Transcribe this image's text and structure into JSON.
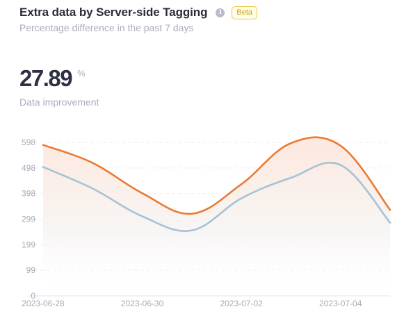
{
  "header": {
    "title": "Extra data by Server-side Tagging",
    "info_icon": "info-icon",
    "badge": "Beta",
    "subtitle": "Percentage difference in the past 7 days"
  },
  "metric": {
    "value": "27.89",
    "unit": "%",
    "label": "Data improvement"
  },
  "chart_data": {
    "type": "area",
    "x_ticks": [
      "2023-06-28",
      "2023-06-30",
      "2023-07-02",
      "2023-07-04"
    ],
    "y_ticks": [
      "0",
      "99",
      "199",
      "299",
      "398",
      "498",
      "598"
    ],
    "ylim": [
      0,
      598
    ],
    "grid": true,
    "x_start": "2023-06-28",
    "x": [
      "2023-06-28",
      "2023-06-29",
      "2023-06-30",
      "2023-07-01",
      "2023-07-02",
      "2023-07-03",
      "2023-07-04",
      "2023-07-05"
    ],
    "series": [
      {
        "color": "#eb7a34",
        "values": [
          588,
          518,
          400,
          320,
          435,
          595,
          585,
          335
        ]
      },
      {
        "color": "#a4c3d6",
        "values": [
          502,
          418,
          310,
          255,
          380,
          460,
          510,
          285
        ]
      }
    ]
  },
  "colors": {
    "accent": "#eb7a34",
    "secondary": "#a4c3d6",
    "badge_border": "#e9cc3d"
  }
}
